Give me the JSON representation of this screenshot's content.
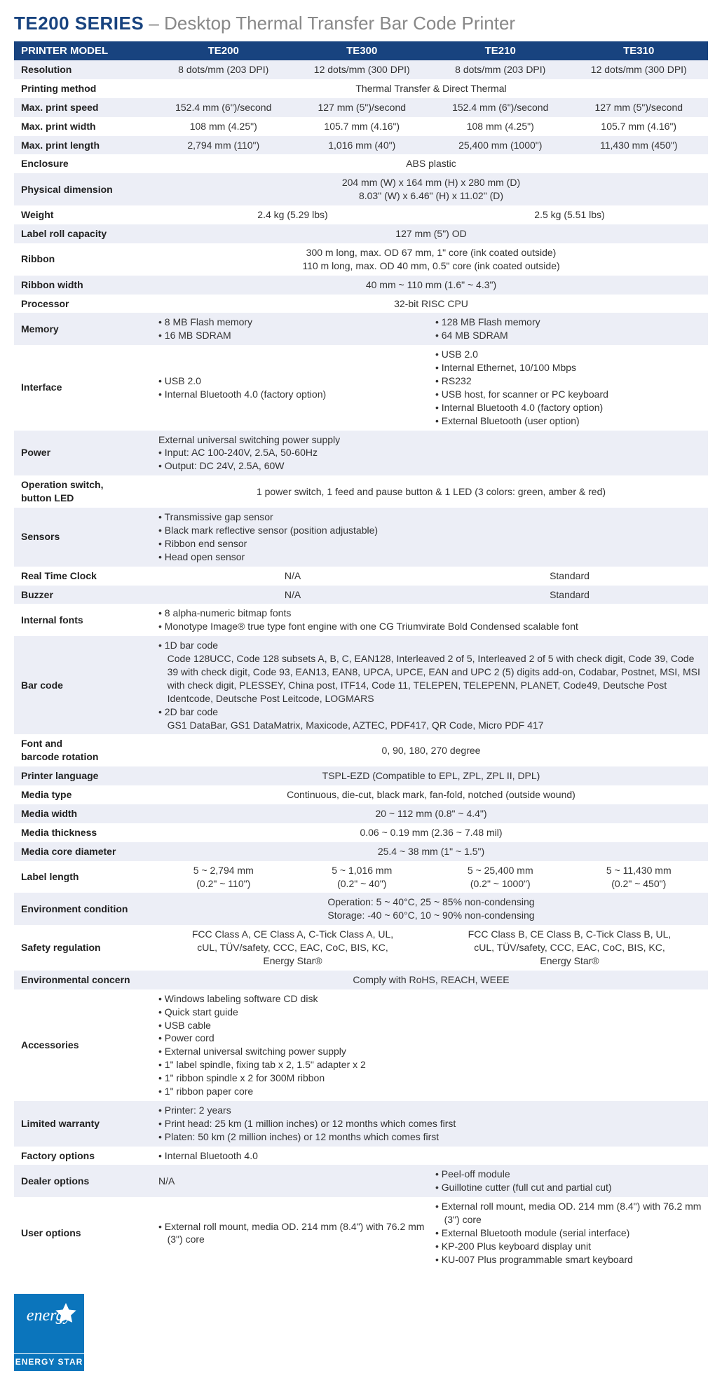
{
  "title": {
    "main": "TE200 SERIES",
    "sep": " – ",
    "sub": "Desktop Thermal Transfer Bar Code Printer"
  },
  "header": {
    "label": "PRINTER MODEL",
    "models": [
      "TE200",
      "TE300",
      "TE210",
      "TE310"
    ]
  },
  "colors": {
    "header_bg": "#18437f",
    "row_odd": "#eceef6",
    "row_even": "#ffffff",
    "title_main": "#18437f",
    "title_sub": "#888888"
  },
  "rows": [
    {
      "bg": "odd",
      "label": "Resolution",
      "cells": [
        {
          "span": 1,
          "align": "center",
          "text": "8 dots/mm (203 DPI)"
        },
        {
          "span": 1,
          "align": "center",
          "text": "12 dots/mm (300 DPI)"
        },
        {
          "span": 1,
          "align": "center",
          "text": "8 dots/mm (203 DPI)"
        },
        {
          "span": 1,
          "align": "center",
          "text": "12 dots/mm (300 DPI)"
        }
      ]
    },
    {
      "bg": "even",
      "label": "Printing method",
      "cells": [
        {
          "span": 4,
          "align": "center",
          "text": "Thermal Transfer & Direct Thermal"
        }
      ]
    },
    {
      "bg": "odd",
      "label": "Max. print speed",
      "cells": [
        {
          "span": 1,
          "align": "center",
          "text": "152.4 mm (6\")/second"
        },
        {
          "span": 1,
          "align": "center",
          "text": "127 mm (5\")/second"
        },
        {
          "span": 1,
          "align": "center",
          "text": "152.4 mm (6\")/second"
        },
        {
          "span": 1,
          "align": "center",
          "text": "127 mm (5\")/second"
        }
      ]
    },
    {
      "bg": "even",
      "label": "Max. print width",
      "cells": [
        {
          "span": 1,
          "align": "center",
          "text": "108 mm (4.25\")"
        },
        {
          "span": 1,
          "align": "center",
          "text": "105.7 mm (4.16\")"
        },
        {
          "span": 1,
          "align": "center",
          "text": "108 mm (4.25\")"
        },
        {
          "span": 1,
          "align": "center",
          "text": "105.7 mm (4.16\")"
        }
      ]
    },
    {
      "bg": "odd",
      "label": "Max. print length",
      "cells": [
        {
          "span": 1,
          "align": "center",
          "text": "2,794 mm (110\")"
        },
        {
          "span": 1,
          "align": "center",
          "text": "1,016 mm (40\")"
        },
        {
          "span": 1,
          "align": "center",
          "text": "25,400 mm (1000\")"
        },
        {
          "span": 1,
          "align": "center",
          "text": "11,430 mm (450\")"
        }
      ]
    },
    {
      "bg": "even",
      "label": "Enclosure",
      "cells": [
        {
          "span": 4,
          "align": "center",
          "text": "ABS plastic"
        }
      ]
    },
    {
      "bg": "odd",
      "label": "Physical dimension",
      "cells": [
        {
          "span": 4,
          "align": "center",
          "lines": [
            "204 mm (W) x 164 mm (H) x 280 mm (D)",
            "8.03\" (W) x 6.46\" (H) x 11.02\" (D)"
          ]
        }
      ]
    },
    {
      "bg": "even",
      "label": "Weight",
      "cells": [
        {
          "span": 2,
          "align": "center",
          "text": "2.4 kg (5.29 lbs)"
        },
        {
          "span": 2,
          "align": "center",
          "text": "2.5 kg (5.51 lbs)"
        }
      ]
    },
    {
      "bg": "odd",
      "label": "Label roll capacity",
      "cells": [
        {
          "span": 4,
          "align": "center",
          "text": "127 mm (5\") OD"
        }
      ]
    },
    {
      "bg": "even",
      "label": "Ribbon",
      "cells": [
        {
          "span": 4,
          "align": "center",
          "lines": [
            "300 m long, max. OD 67 mm, 1\" core (ink coated outside)",
            "110 m long, max. OD 40 mm, 0.5\" core (ink coated outside)"
          ]
        }
      ]
    },
    {
      "bg": "odd",
      "label": "Ribbon width",
      "cells": [
        {
          "span": 4,
          "align": "center",
          "text": "40 mm ~ 110 mm (1.6\" ~ 4.3\")"
        }
      ]
    },
    {
      "bg": "even",
      "label": "Processor",
      "cells": [
        {
          "span": 4,
          "align": "center",
          "text": "32-bit RISC CPU"
        }
      ]
    },
    {
      "bg": "odd",
      "label": "Memory",
      "cells": [
        {
          "span": 2,
          "align": "left",
          "bullets": [
            "8 MB Flash memory",
            "16 MB SDRAM"
          ]
        },
        {
          "span": 2,
          "align": "left",
          "bullets": [
            "128 MB Flash memory",
            "64 MB SDRAM"
          ]
        }
      ]
    },
    {
      "bg": "even",
      "label": "Interface",
      "cells": [
        {
          "span": 2,
          "align": "left",
          "bullets": [
            "USB 2.0",
            "Internal Bluetooth 4.0 (factory option)"
          ]
        },
        {
          "span": 2,
          "align": "left",
          "bullets": [
            "USB 2.0",
            "Internal Ethernet, 10/100 Mbps",
            "RS232",
            "USB host, for scanner or PC keyboard",
            "Internal Bluetooth 4.0 (factory option)",
            "External Bluetooth (user option)"
          ]
        }
      ]
    },
    {
      "bg": "odd",
      "label": "Power",
      "cells": [
        {
          "span": 4,
          "align": "left",
          "mixed": {
            "lead": "External universal switching power supply",
            "bullets": [
              "Input: AC 100-240V, 2.5A, 50-60Hz",
              "Output: DC 24V, 2.5A, 60W"
            ]
          }
        }
      ]
    },
    {
      "bg": "even",
      "label": "Operation switch, button LED",
      "label_lines": [
        "Operation switch,",
        "button LED"
      ],
      "cells": [
        {
          "span": 4,
          "align": "center",
          "text": "1 power switch, 1 feed and pause button & 1 LED (3 colors: green, amber & red)"
        }
      ]
    },
    {
      "bg": "odd",
      "label": "Sensors",
      "cells": [
        {
          "span": 4,
          "align": "left",
          "bullets": [
            "Transmissive gap sensor",
            "Black mark reflective sensor (position adjustable)",
            "Ribbon end sensor",
            "Head open sensor"
          ]
        }
      ]
    },
    {
      "bg": "even",
      "label": "Real Time Clock",
      "cells": [
        {
          "span": 2,
          "align": "center",
          "text": "N/A"
        },
        {
          "span": 2,
          "align": "center",
          "text": "Standard"
        }
      ]
    },
    {
      "bg": "odd",
      "label": "Buzzer",
      "cells": [
        {
          "span": 2,
          "align": "center",
          "text": "N/A"
        },
        {
          "span": 2,
          "align": "center",
          "text": "Standard"
        }
      ]
    },
    {
      "bg": "even",
      "label": "Internal fonts",
      "cells": [
        {
          "span": 4,
          "align": "left",
          "bullets": [
            "8 alpha-numeric bitmap fonts",
            "Monotype Image® true type font engine with one CG Triumvirate Bold Condensed scalable font"
          ]
        }
      ]
    },
    {
      "bg": "odd",
      "label": "Bar code",
      "cells": [
        {
          "span": 4,
          "align": "left",
          "sections": [
            {
              "head": "1D bar code",
              "body": "Code 128UCC, Code 128 subsets A, B, C, EAN128, Interleaved 2 of 5, Interleaved 2 of 5 with check digit, Code 39, Code 39 with check digit, Code 93, EAN13, EAN8, UPCA, UPCE, EAN and UPC 2 (5) digits add-on, Codabar, Postnet, MSI, MSI with check digit, PLESSEY, China post, ITF14, Code 11, TELEPEN, TELEPENN, PLANET, Code49, Deutsche Post Identcode, Deutsche Post Leitcode, LOGMARS"
            },
            {
              "head": "2D bar code",
              "body": "GS1 DataBar, GS1 DataMatrix, Maxicode, AZTEC, PDF417, QR Code, Micro PDF 417"
            }
          ]
        }
      ]
    },
    {
      "bg": "even",
      "label": "Font and barcode rotation",
      "label_lines": [
        "Font and",
        "barcode rotation"
      ],
      "cells": [
        {
          "span": 4,
          "align": "center",
          "text": "0, 90, 180, 270 degree"
        }
      ]
    },
    {
      "bg": "odd",
      "label": "Printer language",
      "cells": [
        {
          "span": 4,
          "align": "center",
          "text": "TSPL-EZD (Compatible to EPL, ZPL, ZPL II, DPL)"
        }
      ]
    },
    {
      "bg": "even",
      "label": "Media type",
      "cells": [
        {
          "span": 4,
          "align": "center",
          "text": "Continuous, die-cut, black mark, fan-fold, notched (outside wound)"
        }
      ]
    },
    {
      "bg": "odd",
      "label": "Media width",
      "cells": [
        {
          "span": 4,
          "align": "center",
          "text": "20 ~ 112 mm (0.8\" ~ 4.4\")"
        }
      ]
    },
    {
      "bg": "even",
      "label": "Media thickness",
      "cells": [
        {
          "span": 4,
          "align": "center",
          "text": "0.06 ~ 0.19 mm (2.36 ~ 7.48 mil)"
        }
      ]
    },
    {
      "bg": "odd",
      "label": "Media core diameter",
      "cells": [
        {
          "span": 4,
          "align": "center",
          "text": "25.4 ~ 38 mm (1\" ~ 1.5\")"
        }
      ]
    },
    {
      "bg": "even",
      "label": "Label length",
      "cells": [
        {
          "span": 1,
          "align": "center",
          "lines": [
            "5 ~ 2,794 mm",
            "(0.2\" ~ 110\")"
          ]
        },
        {
          "span": 1,
          "align": "center",
          "lines": [
            "5 ~ 1,016 mm",
            "(0.2\" ~ 40\")"
          ]
        },
        {
          "span": 1,
          "align": "center",
          "lines": [
            "5 ~ 25,400 mm",
            "(0.2\" ~ 1000\")"
          ]
        },
        {
          "span": 1,
          "align": "center",
          "lines": [
            "5 ~ 11,430 mm",
            "(0.2\" ~ 450\")"
          ]
        }
      ]
    },
    {
      "bg": "odd",
      "label": "Environment condition",
      "cells": [
        {
          "span": 4,
          "align": "center",
          "lines": [
            "Operation: 5 ~ 40°C, 25 ~ 85% non-condensing",
            "Storage: -40 ~ 60°C, 10 ~ 90% non-condensing"
          ]
        }
      ]
    },
    {
      "bg": "even",
      "label": "Safety regulation",
      "cells": [
        {
          "span": 2,
          "align": "center",
          "lines": [
            "FCC Class A, CE Class A, C-Tick Class A, UL,",
            "cUL, TÜV/safety, CCC, EAC, CoC, BIS, KC,",
            "Energy Star®"
          ]
        },
        {
          "span": 2,
          "align": "center",
          "lines": [
            "FCC Class B, CE Class B, C-Tick Class B, UL,",
            "cUL, TÜV/safety, CCC, EAC, CoC, BIS, KC,",
            "Energy Star®"
          ]
        }
      ]
    },
    {
      "bg": "odd",
      "label": "Environmental concern",
      "cells": [
        {
          "span": 4,
          "align": "center",
          "text": "Comply with RoHS, REACH, WEEE"
        }
      ]
    },
    {
      "bg": "even",
      "label": "Accessories",
      "cells": [
        {
          "span": 4,
          "align": "left",
          "bullets": [
            "Windows labeling software CD disk",
            "Quick start guide",
            "USB cable",
            "Power cord",
            "External universal switching power supply",
            "1\" label spindle, fixing tab x 2, 1.5\" adapter x 2",
            "1\" ribbon spindle x 2 for 300M ribbon",
            "1\" ribbon paper core"
          ]
        }
      ]
    },
    {
      "bg": "odd",
      "label": "Limited warranty",
      "cells": [
        {
          "span": 4,
          "align": "left",
          "bullets": [
            "Printer: 2 years",
            "Print head: 25 km (1 million inches) or 12 months which comes first",
            "Platen: 50 km (2 million inches) or 12 months which comes first"
          ]
        }
      ]
    },
    {
      "bg": "even",
      "label": "Factory options",
      "cells": [
        {
          "span": 4,
          "align": "left",
          "bullets": [
            "Internal Bluetooth 4.0"
          ]
        }
      ]
    },
    {
      "bg": "odd",
      "label": "Dealer options",
      "cells": [
        {
          "span": 2,
          "align": "left",
          "text": "N/A"
        },
        {
          "span": 2,
          "align": "left",
          "bullets": [
            "Peel-off module",
            "Guillotine cutter (full cut and partial cut)"
          ]
        }
      ]
    },
    {
      "bg": "even",
      "label": "User options",
      "cells": [
        {
          "span": 2,
          "align": "left",
          "bullets": [
            "External roll mount, media OD. 214 mm (8.4\") with 76.2 mm (3\") core"
          ]
        },
        {
          "span": 2,
          "align": "left",
          "bullets": [
            "External roll mount, media OD. 214 mm (8.4\") with 76.2 mm (3\") core",
            "External Bluetooth module (serial interface)",
            "KP-200 Plus keyboard display unit",
            "KU-007 Plus programmable smart keyboard"
          ]
        }
      ]
    }
  ],
  "energy_star": {
    "script": "energy",
    "label": "ENERGY STAR"
  }
}
